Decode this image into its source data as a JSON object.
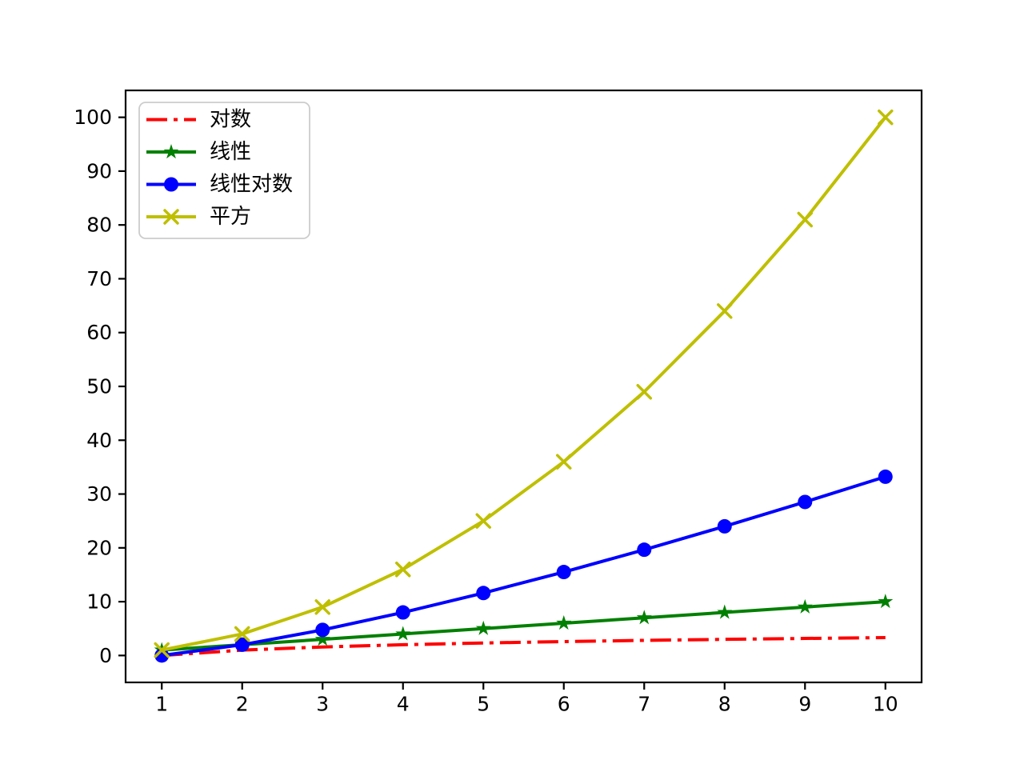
{
  "figure": {
    "background": "#ffffff"
  },
  "chart_data": {
    "type": "line",
    "title": "",
    "xlabel": "",
    "ylabel": "",
    "grid": false,
    "legend_position": "upper-left",
    "xlim": [
      0.55,
      10.45
    ],
    "ylim": [
      -5,
      105
    ],
    "xticks": [
      1,
      2,
      3,
      4,
      5,
      6,
      7,
      8,
      9,
      10
    ],
    "yticks": [
      0,
      10,
      20,
      30,
      40,
      50,
      60,
      70,
      80,
      90,
      100
    ],
    "x": [
      1,
      2,
      3,
      4,
      5,
      6,
      7,
      8,
      9,
      10
    ],
    "series": [
      {
        "name": "对数",
        "semantic": "logarithm",
        "values": [
          0.0,
          1.0,
          1.585,
          2.0,
          2.322,
          2.585,
          2.807,
          3.0,
          3.17,
          3.322
        ],
        "color": "#ff0000",
        "linestyle": "dashdot",
        "marker": "none"
      },
      {
        "name": "线性",
        "semantic": "linear",
        "values": [
          1,
          2,
          3,
          4,
          5,
          6,
          7,
          8,
          9,
          10
        ],
        "color": "#008000",
        "linestyle": "solid",
        "marker": "star"
      },
      {
        "name": "线性对数",
        "semantic": "linearithmic",
        "values": [
          0.0,
          2.0,
          4.755,
          8.0,
          11.61,
          15.51,
          19.651,
          24.0,
          28.529,
          33.219
        ],
        "color": "#0000ff",
        "linestyle": "solid",
        "marker": "circle"
      },
      {
        "name": "平方",
        "semantic": "square",
        "values": [
          1,
          4,
          9,
          16,
          25,
          36,
          49,
          64,
          81,
          100
        ],
        "color": "#bfbf00",
        "linestyle": "solid",
        "marker": "x"
      }
    ],
    "axis_color": "#000000",
    "legend_border_color": "#cccccc",
    "legend_background": "#ffffff"
  }
}
